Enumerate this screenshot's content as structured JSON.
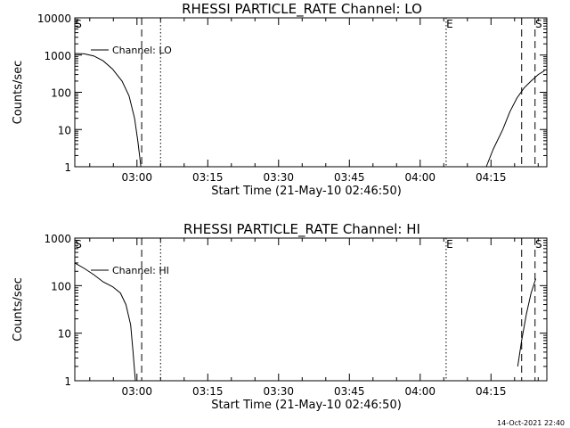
{
  "footer": {
    "timestamp": "14-Oct-2021 22:40"
  },
  "chart_data": [
    {
      "type": "line",
      "title": "RHESSI PARTICLE_RATE Channel: LO",
      "xlabel": "Start Time (21-May-10 02:46:50)",
      "ylabel": "Counts/sec",
      "y_scale": "log",
      "ylim": [
        1,
        10000
      ],
      "xlim": [
        "02:46:50",
        "04:26:50"
      ],
      "x_ticks": [
        "03:00",
        "03:15",
        "03:30",
        "03:45",
        "04:00",
        "04:15"
      ],
      "y_ticks": [
        "1",
        "10",
        "100",
        "1000",
        "10000"
      ],
      "legend": "top-left",
      "series": [
        {
          "name": "Channel: LO",
          "segments": [
            [
              [
                "02:46:50",
                1100
              ],
              [
                "02:48:50",
                1080
              ],
              [
                "02:50:50",
                950
              ],
              [
                "02:52:50",
                700
              ],
              [
                "02:54:50",
                420
              ],
              [
                "02:56:50",
                200
              ],
              [
                "02:58:20",
                80
              ],
              [
                "02:59:30",
                20
              ],
              [
                "03:00:10",
                5
              ],
              [
                "03:00:50",
                1
              ]
            ],
            [
              [
                "04:14:00",
                1
              ],
              [
                "04:15:30",
                3
              ],
              [
                "04:17:30",
                10
              ],
              [
                "04:19:00",
                30
              ],
              [
                "04:20:30",
                70
              ],
              [
                "04:22:00",
                130
              ],
              [
                "04:23:30",
                200
              ],
              [
                "04:25:00",
                300
              ],
              [
                "04:26:20",
                380
              ]
            ]
          ]
        }
      ],
      "markers": [
        {
          "label": "S",
          "time": "02:46:50",
          "style": "none"
        },
        {
          "label": "",
          "time": "03:01:00",
          "style": "dashed"
        },
        {
          "label": "",
          "time": "03:05:00",
          "style": "dotted"
        },
        {
          "label": "E",
          "time": "04:05:30",
          "style": "dotted"
        },
        {
          "label": "",
          "time": "04:21:30",
          "style": "dashed"
        },
        {
          "label": "S",
          "time": "04:24:20",
          "style": "dashed"
        }
      ]
    },
    {
      "type": "line",
      "title": "RHESSI PARTICLE_RATE Channel: HI",
      "xlabel": "Start Time (21-May-10 02:46:50)",
      "ylabel": "Counts/sec",
      "y_scale": "log",
      "ylim": [
        1,
        1000
      ],
      "xlim": [
        "02:46:50",
        "04:26:50"
      ],
      "x_ticks": [
        "03:00",
        "03:15",
        "03:30",
        "03:45",
        "04:00",
        "04:15"
      ],
      "y_ticks": [
        "1",
        "10",
        "100",
        "1000"
      ],
      "legend": "top-left",
      "series": [
        {
          "name": "Channel: HI",
          "segments": [
            [
              [
                "02:46:50",
                300
              ],
              [
                "02:48:50",
                230
              ],
              [
                "02:50:50",
                170
              ],
              [
                "02:52:50",
                120
              ],
              [
                "02:54:50",
                95
              ],
              [
                "02:56:30",
                70
              ],
              [
                "02:57:40",
                40
              ],
              [
                "02:58:40",
                15
              ],
              [
                "02:59:10",
                4
              ],
              [
                "02:59:40",
                1
              ]
            ],
            [
              [
                "04:20:40",
                2
              ],
              [
                "04:21:30",
                7
              ],
              [
                "04:22:30",
                25
              ],
              [
                "04:23:30",
                70
              ],
              [
                "04:24:30",
                140
              ]
            ]
          ]
        }
      ],
      "markers": [
        {
          "label": "S",
          "time": "02:46:50",
          "style": "none"
        },
        {
          "label": "",
          "time": "03:01:00",
          "style": "dashed"
        },
        {
          "label": "",
          "time": "03:05:00",
          "style": "dotted"
        },
        {
          "label": "E",
          "time": "04:05:30",
          "style": "dotted"
        },
        {
          "label": "",
          "time": "04:21:30",
          "style": "dashed"
        },
        {
          "label": "S",
          "time": "04:24:20",
          "style": "dashed"
        }
      ]
    }
  ]
}
